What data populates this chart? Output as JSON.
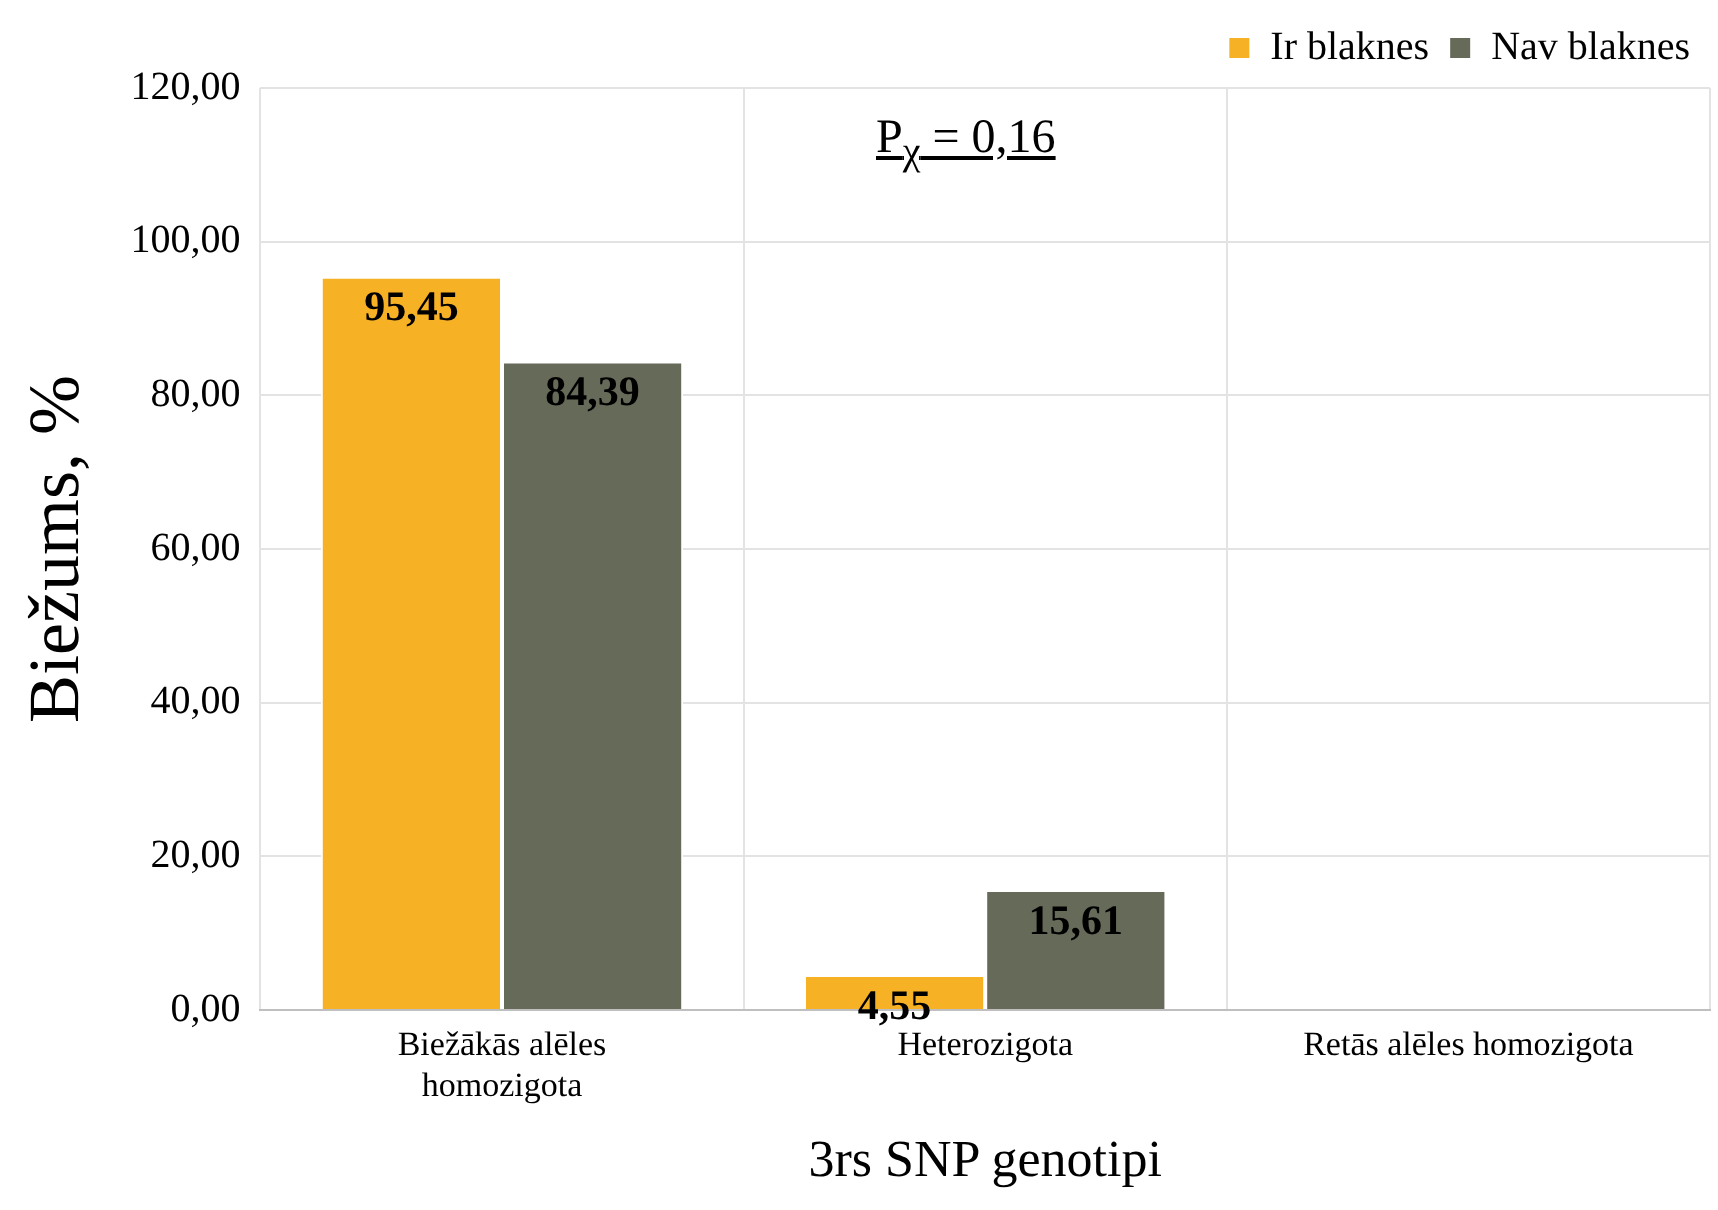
{
  "chart_data": {
    "type": "bar",
    "ylabel": "Biežums, %",
    "xlabel": "3rs SNP genotipi",
    "categories": [
      "Biežākās alēles homozigota",
      "Heterozigota",
      "Retās alēles homozigota"
    ],
    "series": [
      {
        "name": "Ir blaknes",
        "color": "#f7b124",
        "values": [
          95.45,
          4.55,
          null
        ],
        "value_labels": [
          "95,45",
          "4,55",
          null
        ]
      },
      {
        "name": "Nav blaknes",
        "color": "#666a58",
        "values": [
          84.39,
          15.61,
          null
        ],
        "value_labels": [
          "84,39",
          "15,61",
          null
        ]
      }
    ],
    "ylim": [
      0,
      120
    ],
    "yticks": [
      {
        "value": 0,
        "label": "0,00"
      },
      {
        "value": 20,
        "label": "20,00"
      },
      {
        "value": 40,
        "label": "40,00"
      },
      {
        "value": 60,
        "label": "60,00"
      },
      {
        "value": 80,
        "label": "80,00"
      },
      {
        "value": 100,
        "label": "100,00"
      },
      {
        "value": 120,
        "label": "120,00"
      }
    ],
    "grid": true,
    "legend": "top right",
    "annotations": [
      "P$_{χ}$ = 0,16"
    ]
  }
}
